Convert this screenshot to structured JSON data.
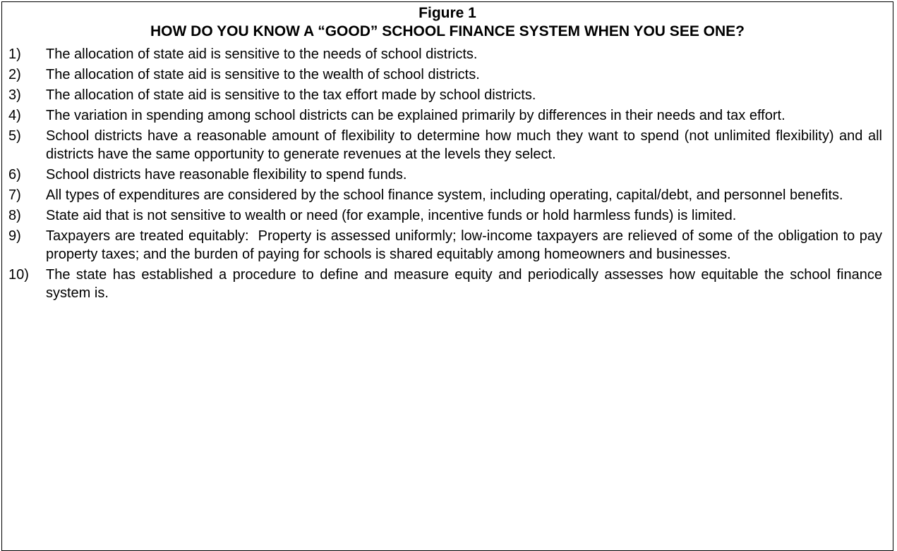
{
  "figure": {
    "label": "Figure 1",
    "title": "HOW DO YOU KNOW A “GOOD” SCHOOL FINANCE SYSTEM WHEN YOU SEE ONE?",
    "items": [
      {
        "number": "1)",
        "text": "The allocation of state aid is sensitive to the needs of school districts."
      },
      {
        "number": "2)",
        "text": "The allocation of state aid is sensitive to the wealth of school districts."
      },
      {
        "number": "3)",
        "text": "The allocation of state aid is sensitive to the tax effort made by school districts."
      },
      {
        "number": "4)",
        "text": "The variation in spending among school districts can be explained primarily by differences in their needs and tax effort."
      },
      {
        "number": "5)",
        "text": "School districts have a reasonable amount of flexibility to determine how much they want to spend (not unlimited flexibility) and all districts have the same opportunity to generate revenues at the levels they select."
      },
      {
        "number": "6)",
        "text": "School districts have reasonable flexibility to spend funds."
      },
      {
        "number": "7)",
        "text": "All types of expenditures are considered by the school finance system, including operating, capital/debt, and personnel benefits."
      },
      {
        "number": "8)",
        "text": "State aid that is not sensitive to wealth or need (for example, incentive funds or hold harmless funds) is limited."
      },
      {
        "number": "9)",
        "text": "Taxpayers are treated equitably:  Property is assessed uniformly; low-income taxpayers are relieved of some of the obligation to pay property taxes; and the burden of paying for schools is shared equitably among homeowners and businesses."
      },
      {
        "number": "10)",
        "text": "The state has established a procedure to define and measure equity and periodically assesses how equitable the school finance system is."
      }
    ]
  }
}
